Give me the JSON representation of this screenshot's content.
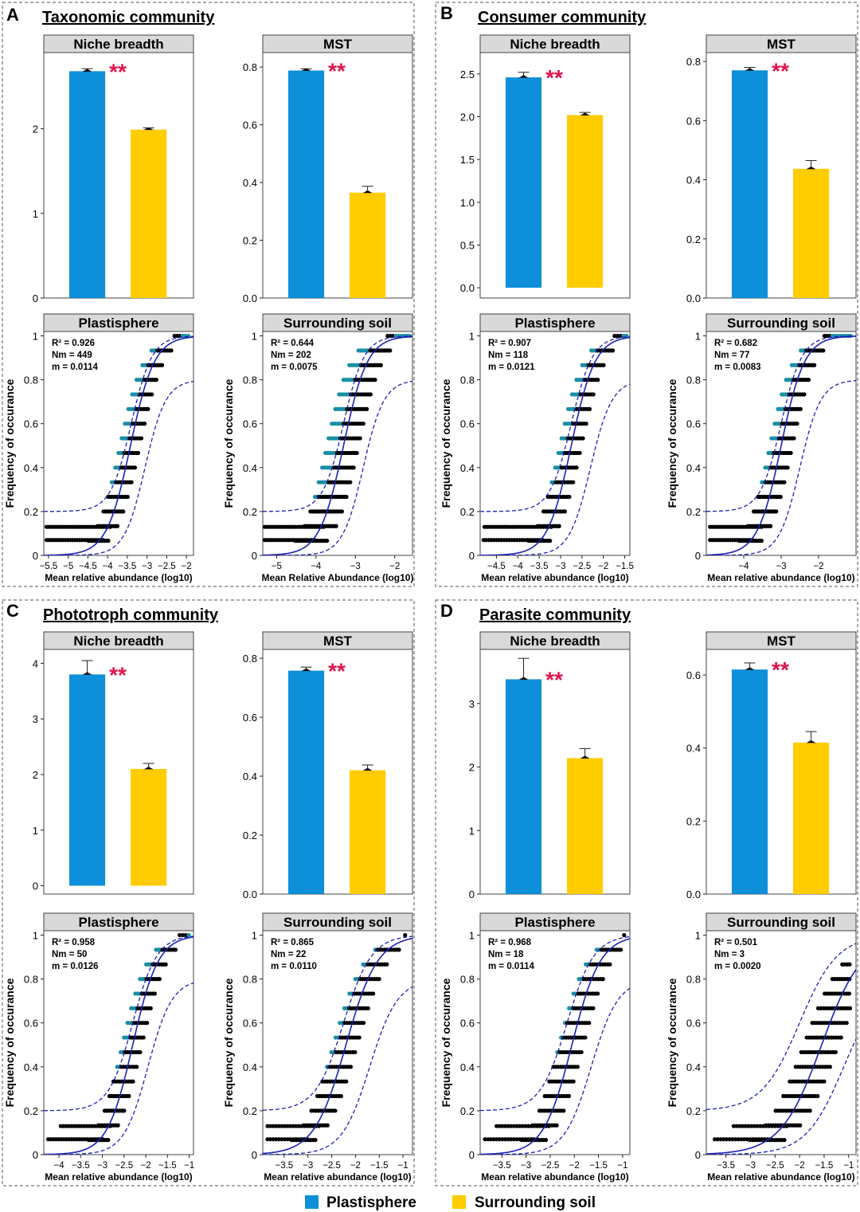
{
  "legend": {
    "entries": [
      "Plastisphere",
      "Surrounding soil"
    ],
    "colors": [
      "#0d8fd9",
      "#ffcc00"
    ]
  },
  "colors": {
    "plastisphere": "#0d8fd9",
    "soil": "#ffcc00",
    "above": "#1a8fa5",
    "below": "#a52a2a",
    "neutral": "#000000",
    "fit": "#1c22b5",
    "significance": "#e0144c",
    "strip": "#d9d9d9"
  },
  "panels": [
    {
      "letter": "A",
      "title": "Taxonomic community"
    },
    {
      "letter": "B",
      "title": "Consumer community"
    },
    {
      "letter": "C",
      "title": "Phototroph community"
    },
    {
      "letter": "D",
      "title": "Parasite community"
    }
  ],
  "chart_data": [
    {
      "id": "A-niche",
      "type": "bar",
      "title": "Niche breadth",
      "categories": [
        "Plastisphere",
        "Surrounding soil"
      ],
      "values": [
        2.68,
        1.99
      ],
      "errors": [
        0.03,
        0.02
      ],
      "ylim": [
        0,
        2.9
      ],
      "yticks": [
        0,
        1,
        2
      ],
      "significance": "**"
    },
    {
      "id": "A-mst",
      "type": "bar",
      "title": "MST",
      "categories": [
        "Plastisphere",
        "Surrounding soil"
      ],
      "values": [
        0.788,
        0.365
      ],
      "errors": [
        0.006,
        0.022
      ],
      "ylim": [
        0,
        0.85
      ],
      "yticks": [
        0.0,
        0.2,
        0.4,
        0.6,
        0.8
      ],
      "ytick_decimals": 1,
      "significance": "**"
    },
    {
      "id": "B-niche",
      "type": "bar",
      "title": "Niche breadth",
      "categories": [
        "Plastisphere",
        "Surrounding soil"
      ],
      "values": [
        2.46,
        2.02
      ],
      "errors": [
        0.06,
        0.03
      ],
      "ylim": [
        -0.12,
        2.75
      ],
      "yticks": [
        0.0,
        0.5,
        1.0,
        1.5,
        2.0,
        2.5
      ],
      "ytick_decimals": 1,
      "significance": "**"
    },
    {
      "id": "B-mst",
      "type": "bar",
      "title": "MST",
      "categories": [
        "Plastisphere",
        "Surrounding soil"
      ],
      "values": [
        0.77,
        0.437
      ],
      "errors": [
        0.01,
        0.028
      ],
      "ylim": [
        0,
        0.83
      ],
      "yticks": [
        0.0,
        0.2,
        0.4,
        0.6,
        0.8
      ],
      "ytick_decimals": 1,
      "significance": "**"
    },
    {
      "id": "C-niche",
      "type": "bar",
      "title": "Niche breadth",
      "categories": [
        "Plastisphere",
        "Surrounding soil"
      ],
      "values": [
        3.8,
        2.1
      ],
      "errors": [
        0.25,
        0.1
      ],
      "ylim": [
        -0.15,
        4.25
      ],
      "yticks": [
        0,
        1,
        2,
        3,
        4
      ],
      "significance": "**"
    },
    {
      "id": "C-mst",
      "type": "bar",
      "title": "MST",
      "categories": [
        "Plastisphere",
        "Surrounding soil"
      ],
      "values": [
        0.758,
        0.42
      ],
      "errors": [
        0.012,
        0.018
      ],
      "ylim": [
        0,
        0.83
      ],
      "yticks": [
        0.0,
        0.2,
        0.4,
        0.6,
        0.8
      ],
      "ytick_decimals": 1,
      "significance": "**"
    },
    {
      "id": "D-niche",
      "type": "bar",
      "title": "Niche breadth",
      "categories": [
        "Plastisphere",
        "Surrounding soil"
      ],
      "values": [
        3.38,
        2.14
      ],
      "errors": [
        0.33,
        0.15
      ],
      "ylim": [
        0,
        3.85
      ],
      "yticks": [
        0,
        1,
        2,
        3
      ],
      "significance": "**"
    },
    {
      "id": "D-mst",
      "type": "bar",
      "title": "MST",
      "categories": [
        "Plastisphere",
        "Surrounding soil"
      ],
      "values": [
        0.615,
        0.415
      ],
      "errors": [
        0.018,
        0.03
      ],
      "ylim": [
        0,
        0.67
      ],
      "yticks": [
        0.0,
        0.2,
        0.4,
        0.6
      ],
      "ytick_decimals": 1,
      "significance": "**"
    },
    {
      "id": "A-plast",
      "type": "scatter",
      "title": "Plastisphere",
      "xlabel": "Mean relative abundance (log10)",
      "ylabel": "Frequency of occurance",
      "xlim": [
        -5.62,
        -1.82
      ],
      "ylim": [
        0,
        1.02
      ],
      "xticks": [
        -5.5,
        -5,
        -4.5,
        -4,
        -3.5,
        -3,
        -2.5,
        -2
      ],
      "yticks": [
        0,
        0.2,
        0.4,
        0.6,
        0.8,
        1
      ],
      "stats": [
        "R² = 0.926",
        "Nm = 449",
        "m = 0.0114"
      ],
      "fit": {
        "x0": -3.42,
        "k": 3.3
      },
      "upper": {
        "x0": -3.4,
        "k": 3.8,
        "top": 1.0,
        "base": 0.2
      },
      "lower": {
        "x0": -3.05,
        "k": 3.8,
        "top": 0.8,
        "base": 0.0
      },
      "levels": 15,
      "xmin": -5.55,
      "xmax": -1.9,
      "neutral_w": 0.22,
      "densities": [
        [
          0.07,
          1,
          6
        ],
        [
          0.13,
          1.2,
          4
        ]
      ]
    },
    {
      "id": "A-soil",
      "type": "scatter",
      "title": "Surrounding soil",
      "xlabel": "Mean Relative Abundance (log10)",
      "ylabel": "Frequency of occurance",
      "xlim": [
        -5.35,
        -1.55
      ],
      "ylim": [
        0,
        1.02
      ],
      "xticks": [
        -5,
        -4,
        -3,
        -2
      ],
      "yticks": [
        0,
        0.2,
        0.4,
        0.6,
        0.8,
        1
      ],
      "stats": [
        "R² = 0.644",
        "Nm = 202",
        "m = 0.0075"
      ],
      "fit": {
        "x0": -3.3,
        "k": 3.3
      },
      "upper": {
        "x0": -3.3,
        "k": 3.8,
        "top": 1.0,
        "base": 0.2
      },
      "lower": {
        "x0": -2.8,
        "k": 3.8,
        "top": 0.8,
        "base": 0.0
      },
      "levels": 15,
      "xmin": -5.3,
      "xmax": -1.6,
      "neutral_w": 0.35,
      "densities": [
        [
          0.07,
          1,
          6
        ],
        [
          0.13,
          1.2,
          4
        ]
      ]
    },
    {
      "id": "B-plast",
      "type": "scatter",
      "title": "Plastisphere",
      "xlabel": "Mean relative abundance (log10)",
      "ylabel": "Frequency of occurance",
      "xlim": [
        -4.88,
        -1.38
      ],
      "ylim": [
        0,
        1.02
      ],
      "xticks": [
        -4.5,
        -4,
        -3.5,
        -3,
        -2.5,
        -2,
        -1.5
      ],
      "yticks": [
        0,
        0.2,
        0.4,
        0.6,
        0.8,
        1
      ],
      "stats": [
        "R² = 0.907",
        "Nm = 118",
        "m = 0.0121"
      ],
      "fit": {
        "x0": -2.75,
        "k": 3.6
      },
      "upper": {
        "x0": -2.75,
        "k": 4.0,
        "top": 1.0,
        "base": 0.2
      },
      "lower": {
        "x0": -2.3,
        "k": 4.0,
        "top": 0.8,
        "base": 0.0
      },
      "levels": 15,
      "xmin": -4.8,
      "xmax": -1.45,
      "neutral_w": 0.22,
      "densities": [
        [
          0.07,
          0.8,
          5
        ],
        [
          0.13,
          0.9,
          3
        ]
      ]
    },
    {
      "id": "B-soil",
      "type": "scatter",
      "title": "Surrounding soil",
      "xlabel": "Mean relative abundance (log10)",
      "ylabel": "Frequency of occurance",
      "xlim": [
        -5.0,
        -1.0
      ],
      "ylim": [
        0,
        1.02
      ],
      "xticks": [
        -4,
        -3,
        -2
      ],
      "yticks": [
        0,
        0.2,
        0.4,
        0.6,
        0.8,
        1
      ],
      "stats": [
        "R² = 0.682",
        "Nm = 77",
        "m = 0.0083"
      ],
      "fit": {
        "x0": -3.0,
        "k": 3.2
      },
      "upper": {
        "x0": -3.0,
        "k": 3.6,
        "top": 1.0,
        "base": 0.2
      },
      "lower": {
        "x0": -2.5,
        "k": 3.6,
        "top": 0.8,
        "base": 0.0
      },
      "levels": 15,
      "xmin": -4.9,
      "xmax": -1.1,
      "neutral_w": 0.25,
      "densities": [
        [
          0.07,
          0.8,
          5
        ],
        [
          0.13,
          0.9,
          3
        ]
      ]
    },
    {
      "id": "C-plast",
      "type": "scatter",
      "title": "Plastisphere",
      "xlabel": "Mean relative abundance (log10)",
      "ylabel": "Frequency of occurance",
      "xlim": [
        -4.35,
        -0.9
      ],
      "ylim": [
        0,
        1.02
      ],
      "xticks": [
        -4,
        -3.5,
        -3,
        -2.5,
        -2,
        -1.5,
        -1
      ],
      "yticks": [
        0,
        0.2,
        0.4,
        0.6,
        0.8,
        1
      ],
      "stats": [
        "R² = 0.958",
        "Nm = 50",
        "m = 0.0126"
      ],
      "fit": {
        "x0": -2.3,
        "k": 3.4
      },
      "upper": {
        "x0": -2.3,
        "k": 3.6,
        "top": 1.0,
        "base": 0.2
      },
      "lower": {
        "x0": -1.95,
        "k": 3.6,
        "top": 0.8,
        "base": 0.0
      },
      "levels": 15,
      "xmin": -4.25,
      "xmax": -1.0,
      "neutral_w": 0.2,
      "densities": [
        [
          0.07,
          0.6,
          4
        ],
        [
          0.13,
          0.5,
          2
        ]
      ]
    },
    {
      "id": "C-soil",
      "type": "scatter",
      "title": "Surrounding soil",
      "xlabel": "Mean relative abundance (log10)",
      "ylabel": "Frequency of occurance",
      "xlim": [
        -3.95,
        -0.8
      ],
      "ylim": [
        0,
        1.02
      ],
      "xticks": [
        -3.5,
        -3,
        -2.5,
        -2,
        -1.5,
        -1
      ],
      "yticks": [
        0,
        0.2,
        0.4,
        0.6,
        0.8,
        1
      ],
      "stats": [
        "R² = 0.865",
        "Nm = 22",
        "m = 0.0110"
      ],
      "fit": {
        "x0": -2.2,
        "k": 3.0
      },
      "upper": {
        "x0": -2.25,
        "k": 3.4,
        "top": 1.0,
        "base": 0.2
      },
      "lower": {
        "x0": -1.7,
        "k": 3.4,
        "top": 0.8,
        "base": 0.0
      },
      "levels": 15,
      "xmin": -3.85,
      "xmax": -0.9,
      "neutral_w": 0.22,
      "densities": [
        [
          0.07,
          0.6,
          4
        ],
        [
          0.13,
          0.5,
          2
        ]
      ]
    },
    {
      "id": "D-plast",
      "type": "scatter",
      "title": "Plastisphere",
      "xlabel": "Mean relative abundance (log10)",
      "ylabel": "Frequency of occurance",
      "xlim": [
        -3.95,
        -0.85
      ],
      "ylim": [
        0,
        1.02
      ],
      "xticks": [
        -3.5,
        -3,
        -2.5,
        -2,
        -1.5,
        -1
      ],
      "yticks": [
        0,
        0.2,
        0.4,
        0.6,
        0.8,
        1
      ],
      "stats": [
        "R² = 0.968",
        "Nm = 18",
        "m = 0.0114"
      ],
      "fit": {
        "x0": -2.05,
        "k": 3.4
      },
      "upper": {
        "x0": -2.15,
        "k": 3.6,
        "top": 1.0,
        "base": 0.2
      },
      "lower": {
        "x0": -1.65,
        "k": 3.6,
        "top": 0.8,
        "base": 0.0
      },
      "levels": 15,
      "xmin": -3.85,
      "xmax": -0.95,
      "neutral_w": 0.22,
      "densities": [
        [
          0.07,
          0.5,
          3
        ],
        [
          0.13,
          0.4,
          2
        ]
      ]
    },
    {
      "id": "D-soil",
      "type": "scatter",
      "title": "Surrounding soil",
      "xlabel": "Mean relative abundance (log10)",
      "ylabel": "Frequency of occurance",
      "xlim": [
        -3.9,
        -0.85
      ],
      "ylim": [
        0,
        1.02
      ],
      "xticks": [
        -3.5,
        -3,
        -2.5,
        -2,
        -1.5,
        -1
      ],
      "yticks": [
        0,
        0.2,
        0.4,
        0.6,
        0.8,
        1
      ],
      "stats": [
        "R² = 0.501",
        "Nm = 3",
        "m = 0.0020"
      ],
      "fit": {
        "x0": -1.55,
        "k": 2.4
      },
      "upper": {
        "x0": -2.0,
        "k": 2.6,
        "top": 1.0,
        "base": 0.2
      },
      "lower": {
        "x0": -1.1,
        "k": 2.6,
        "top": 0.8,
        "base": 0.0
      },
      "levels": 15,
      "xmin": -3.8,
      "xmax": -0.95,
      "neutral_w": 0.3,
      "densities": [
        [
          0.07,
          0.5,
          3
        ],
        [
          0.13,
          0.4,
          2
        ]
      ]
    }
  ]
}
